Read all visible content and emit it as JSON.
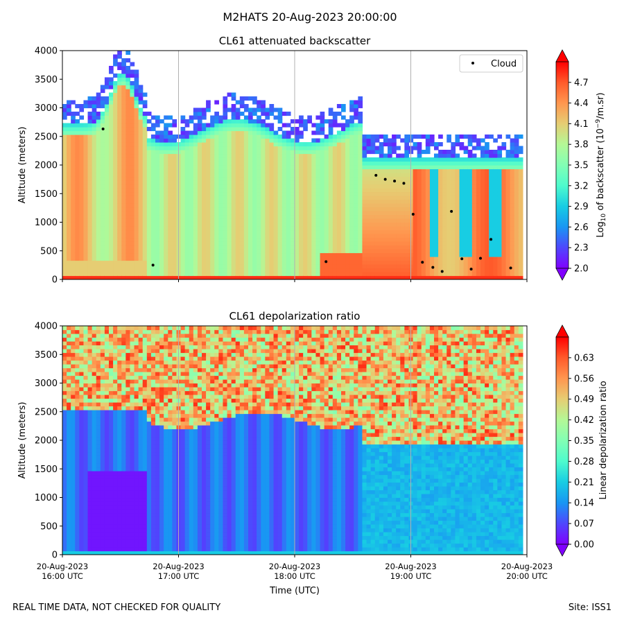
{
  "figure_title": "M2HATS 20-Aug-2023 20:00:00",
  "footer": {
    "left": "REAL TIME DATA, NOT CHECKED FOR QUALITY",
    "right": "Site: ISS1"
  },
  "colors": {
    "colormap": [
      "#8000ff",
      "#4f47fd",
      "#1996f3",
      "#18cde3",
      "#4efbcd",
      "#82ffb4",
      "#b4f896",
      "#e6cd73",
      "#ff964f",
      "#ff5a2a",
      "#ff0000"
    ],
    "cloud_marker": "#000000",
    "grid": "#b0b0b0"
  },
  "chart_data": [
    {
      "type": "heatmap",
      "title": "CL61 attenuated backscatter",
      "xlabel": "",
      "ylabel": "Altitude (meters)",
      "ylim": [
        0,
        4000
      ],
      "yticks": [
        0,
        500,
        1000,
        1500,
        2000,
        2500,
        3000,
        3500,
        4000
      ],
      "x_range_hours": [
        0,
        4
      ],
      "grid": true,
      "colorbar": {
        "label": "Log10 of backscatter (10^-9/m.sr)",
        "range": [
          2.0,
          5.0
        ],
        "ticks": [
          "2.0",
          "2.3",
          "2.6",
          "2.9",
          "3.2",
          "3.5",
          "3.8",
          "4.1",
          "4.4",
          "4.7"
        ]
      },
      "legend": {
        "entries": [
          "Cloud"
        ],
        "loc": "top-right"
      },
      "cloud_base": [
        {
          "t": 0.35,
          "alt": 2630
        },
        {
          "t": 0.78,
          "alt": 250
        },
        {
          "t": 2.27,
          "alt": 310
        },
        {
          "t": 2.7,
          "alt": 1820
        },
        {
          "t": 2.78,
          "alt": 1750
        },
        {
          "t": 2.86,
          "alt": 1720
        },
        {
          "t": 2.94,
          "alt": 1680
        },
        {
          "t": 3.02,
          "alt": 1140
        },
        {
          "t": 3.1,
          "alt": 300
        },
        {
          "t": 3.19,
          "alt": 210
        },
        {
          "t": 3.27,
          "alt": 140
        },
        {
          "t": 3.35,
          "alt": 1190
        },
        {
          "t": 3.44,
          "alt": 360
        },
        {
          "t": 3.52,
          "alt": 180
        },
        {
          "t": 3.6,
          "alt": 370
        },
        {
          "t": 3.69,
          "alt": 700
        },
        {
          "t": 3.86,
          "alt": 200
        }
      ]
    },
    {
      "type": "heatmap",
      "title": "CL61 depolarization ratio",
      "xlabel": "Time (UTC)",
      "ylabel": "Altitude (meters)",
      "ylim": [
        0,
        4000
      ],
      "yticks": [
        0,
        500,
        1000,
        1500,
        2000,
        2500,
        3000,
        3500,
        4000
      ],
      "x_range_hours": [
        0,
        4
      ],
      "grid": true,
      "xticks": [
        {
          "t": 0,
          "line1": "20-Aug-2023",
          "line2": "16:00 UTC"
        },
        {
          "t": 1,
          "line1": "20-Aug-2023",
          "line2": "17:00 UTC"
        },
        {
          "t": 2,
          "line1": "20-Aug-2023",
          "line2": "18:00 UTC"
        },
        {
          "t": 3,
          "line1": "20-Aug-2023",
          "line2": "19:00 UTC"
        },
        {
          "t": 4,
          "line1": "20-Aug-2023",
          "line2": "20:00 UTC"
        }
      ],
      "colorbar": {
        "label": "Linear depolarization ratio",
        "range": [
          0.0,
          0.7
        ],
        "ticks": [
          "0.00",
          "0.07",
          "0.14",
          "0.21",
          "0.28",
          "0.35",
          "0.42",
          "0.49",
          "0.56",
          "0.63"
        ]
      }
    }
  ]
}
